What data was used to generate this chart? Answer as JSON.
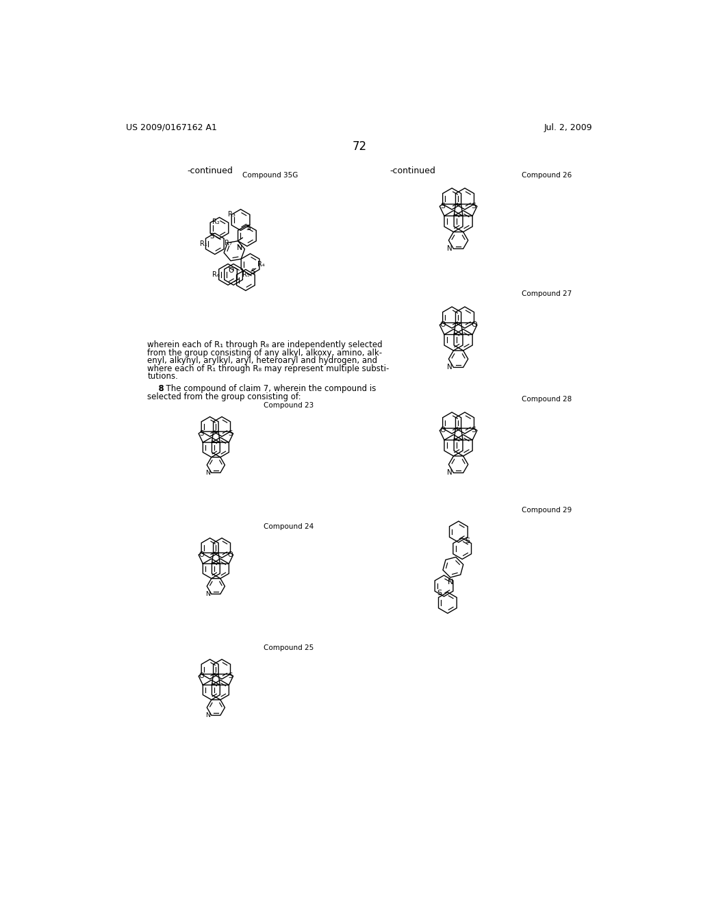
{
  "bg_color": "#ffffff",
  "page_width": 10.24,
  "page_height": 13.2,
  "header_left": "US 2009/0167162 A1",
  "header_right": "Jul. 2, 2009",
  "page_number": "72",
  "continued_left": "-continued",
  "continued_right": "-continued",
  "compound_35G_label": "Compound 35G",
  "compound_26_label": "Compound 26",
  "compound_27_label": "Compound 27",
  "compound_28_label": "Compound 28",
  "compound_29_label": "Compound 29",
  "compound_23_label": "Compound 23",
  "compound_24_label": "Compound 24",
  "compound_25_label": "Compound 25",
  "body_lines": [
    "wherein each of R₁ through R₈ are independently selected",
    "from the group consisting of any alkyl, alkoxy, amino, alk-",
    "enyl, alkynyl, arylkyl, aryl, heteroaryl and hydrogen, and",
    "where each of R₁ through R₈ may represent multiple substi-",
    "tutions."
  ],
  "claim_line1": "    8. The compound of claim 7, wherein the compound is",
  "claim_line2": "selected from the group consisting of:"
}
